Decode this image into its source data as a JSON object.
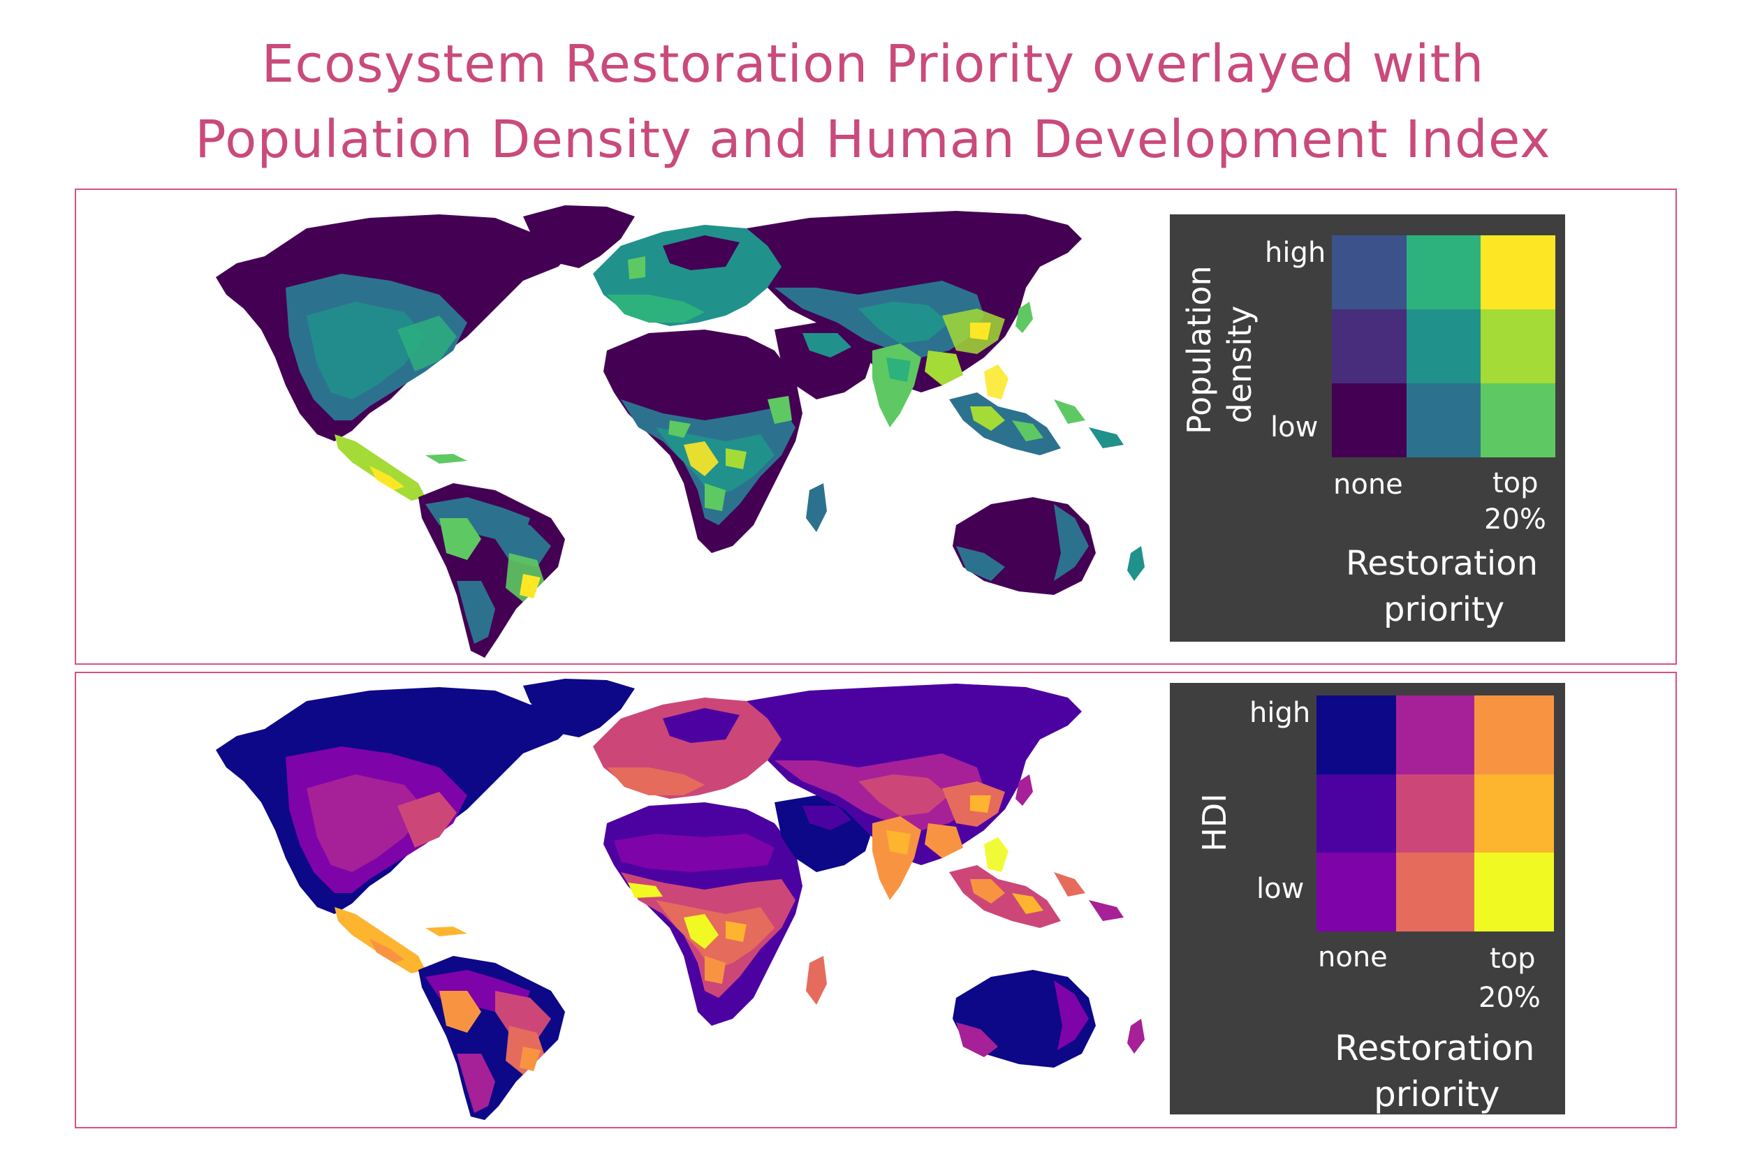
{
  "title": {
    "line1": "Ecosystem Restoration Priority overlayed with",
    "line2": "Population Density and Human Development Index"
  },
  "maps": [
    {
      "name": "population-density",
      "legend": {
        "y_title_line1": "Population",
        "y_title_line2": "density",
        "y_high": "high",
        "y_low": "low",
        "x_none": "none",
        "x_top_line1": "top",
        "x_top_line2": "20%",
        "x_title_line1": "Restoration",
        "x_title_line2": "priority",
        "grid_colors": [
          [
            "#3b528b",
            "#2db27d",
            "#fde725"
          ],
          [
            "#472d7b",
            "#21918c",
            "#a5db36"
          ],
          [
            "#440154",
            "#2c728e",
            "#5ec962"
          ]
        ]
      },
      "palette": {
        "base": "#440154",
        "mid": "#2c728e",
        "teal": "#21918c",
        "green": "#5ec962",
        "yellow": "#fde725",
        "lime": "#a5db36"
      }
    },
    {
      "name": "hdi",
      "legend": {
        "y_title": "HDI",
        "y_high": "high",
        "y_low": "low",
        "x_none": "none",
        "x_top_line1": "top",
        "x_top_line2": "20%",
        "x_title_line1": "Restoration",
        "x_title_line2": "priority",
        "grid_colors": [
          [
            "#0d0887",
            "#a62098",
            "#f89441"
          ],
          [
            "#4c02a1",
            "#cc4778",
            "#fdb42f"
          ],
          [
            "#7e03a8",
            "#e56b5d",
            "#f0f921"
          ]
        ]
      },
      "palette": {
        "base": "#0d0887",
        "purple": "#7e03a8",
        "magenta": "#cc4778",
        "salmon": "#e56b5d",
        "orange": "#f89441",
        "yellow": "#f0f921"
      }
    }
  ]
}
